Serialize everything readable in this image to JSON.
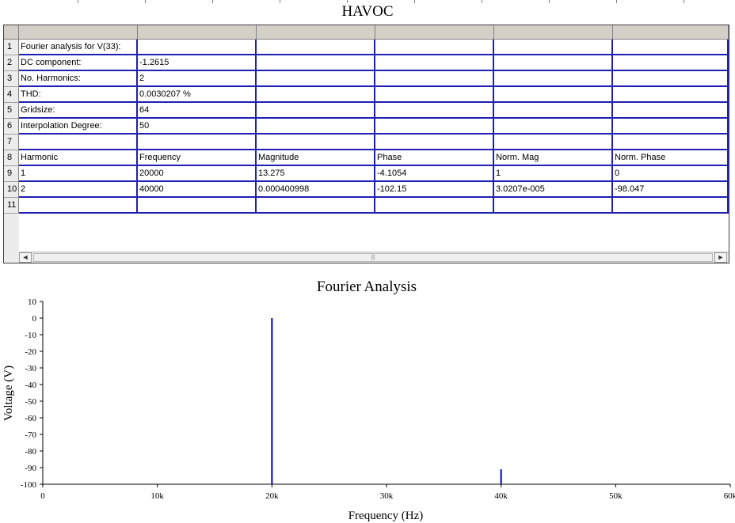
{
  "app": {
    "title": "HAVOC"
  },
  "spreadsheet": {
    "rows": [
      [
        "Fourier analysis for V(33):",
        "",
        "",
        "",
        "",
        ""
      ],
      [
        "DC component:",
        "-1.2615",
        "",
        "",
        "",
        ""
      ],
      [
        "No. Harmonics:",
        "2",
        "",
        "",
        "",
        ""
      ],
      [
        "THD:",
        "0.0030207 %",
        "",
        "",
        "",
        ""
      ],
      [
        "Gridsize:",
        "64",
        "",
        "",
        "",
        ""
      ],
      [
        "Interpolation Degree:",
        "50",
        "",
        "",
        "",
        ""
      ],
      [
        "",
        "",
        "",
        "",
        "",
        ""
      ],
      [
        "Harmonic",
        "Frequency",
        "Magnitude",
        "Phase",
        "Norm. Mag",
        "Norm. Phase"
      ],
      [
        "1",
        "20000",
        "13.275",
        "-4.1054",
        "1",
        "0"
      ],
      [
        "2",
        "40000",
        "0.000400998",
        "-102.15",
        "3.0207e-005",
        "-98.047"
      ],
      [
        "",
        "",
        "",
        "",
        "",
        ""
      ]
    ],
    "row_numbers": [
      "1",
      "2",
      "3",
      "4",
      "5",
      "6",
      "7",
      "8",
      "9",
      "10",
      "11"
    ],
    "scroll_left_icon": "◄",
    "scroll_right_icon": "►",
    "scroll_grip": "|||"
  },
  "chart_data": {
    "type": "bar",
    "title": "Fourier Analysis",
    "xlabel": "Frequency (Hz)",
    "ylabel": "Voltage (V)",
    "xlim": [
      0,
      60000
    ],
    "ylim": [
      -100,
      10
    ],
    "xticks": [
      0,
      10000,
      20000,
      30000,
      40000,
      50000,
      60000
    ],
    "xtick_labels": [
      "0",
      "10k",
      "20k",
      "30k",
      "40k",
      "50k",
      "60k"
    ],
    "yticks": [
      10,
      0,
      -10,
      -20,
      -30,
      -40,
      -50,
      -60,
      -70,
      -80,
      -90,
      -100
    ],
    "ytick_labels": [
      "10",
      "0",
      "-10",
      "-20",
      "-30",
      "-40",
      "-50",
      "-60",
      "-70",
      "-80",
      "-90",
      "-100"
    ],
    "points": [
      {
        "x": 20000,
        "y": 0
      },
      {
        "x": 40000,
        "y": -91
      }
    ],
    "bar_color": "#0000cc",
    "grid": false
  }
}
